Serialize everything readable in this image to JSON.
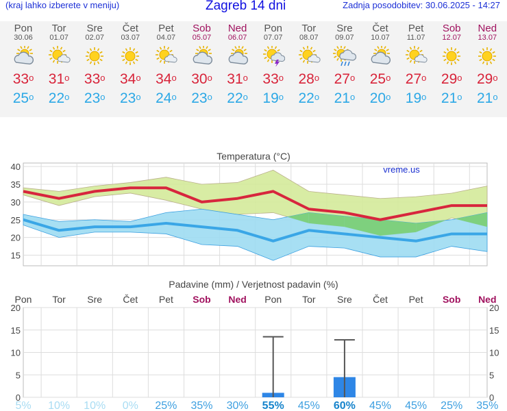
{
  "header": {
    "left_note": "(kraj lahko izberete v meniju)",
    "title": "Zagreb 14 dni",
    "updated": "Zadnja posodobitev: 30.06.2025 - 14:27"
  },
  "days": [
    {
      "name": "Pon",
      "date": "30.06",
      "weekend": false,
      "icon": "partly-cloudy-icon",
      "tmax": "33",
      "tmin": "25"
    },
    {
      "name": "Tor",
      "date": "01.07",
      "weekend": false,
      "icon": "sun-small-cloud-icon",
      "tmax": "31",
      "tmin": "22"
    },
    {
      "name": "Sre",
      "date": "02.07",
      "weekend": false,
      "icon": "sun-icon",
      "tmax": "33",
      "tmin": "23"
    },
    {
      "name": "Čet",
      "date": "03.07",
      "weekend": false,
      "icon": "sun-icon",
      "tmax": "34",
      "tmin": "23"
    },
    {
      "name": "Pet",
      "date": "04.07",
      "weekend": false,
      "icon": "sun-small-cloud-icon",
      "tmax": "34",
      "tmin": "24"
    },
    {
      "name": "Sob",
      "date": "05.07",
      "weekend": true,
      "icon": "partly-cloudy-icon",
      "tmax": "30",
      "tmin": "23"
    },
    {
      "name": "Ned",
      "date": "06.07",
      "weekend": true,
      "icon": "partly-cloudy-icon",
      "tmax": "31",
      "tmin": "22"
    },
    {
      "name": "Pon",
      "date": "07.07",
      "weekend": false,
      "icon": "thunderstorm-icon",
      "tmax": "33",
      "tmin": "19"
    },
    {
      "name": "Tor",
      "date": "08.07",
      "weekend": false,
      "icon": "sun-small-cloud-icon",
      "tmax": "28",
      "tmin": "22"
    },
    {
      "name": "Sre",
      "date": "09.07",
      "weekend": false,
      "icon": "rain-shower-icon",
      "tmax": "27",
      "tmin": "21"
    },
    {
      "name": "Čet",
      "date": "10.07",
      "weekend": false,
      "icon": "partly-cloudy-icon",
      "tmax": "25",
      "tmin": "20"
    },
    {
      "name": "Pet",
      "date": "11.07",
      "weekend": false,
      "icon": "sun-small-cloud-icon",
      "tmax": "27",
      "tmin": "19"
    },
    {
      "name": "Sob",
      "date": "12.07",
      "weekend": true,
      "icon": "sun-icon",
      "tmax": "29",
      "tmin": "21"
    },
    {
      "name": "Ned",
      "date": "13.07",
      "weekend": true,
      "icon": "sun-icon",
      "tmax": "29",
      "tmin": "21"
    }
  ],
  "colors": {
    "max_line": "#d7263d",
    "min_line": "#3aa6e6",
    "max_band": "#d4ea9a",
    "min_band": "#9ddcf2",
    "overlap": "#7ed07e",
    "precip_bar": "#2e86e6",
    "weekend": "#a0115e",
    "prob_high": "#1784cc",
    "prob_low": "#a8dcf3"
  },
  "chart_data": [
    {
      "type": "line",
      "title": "Temperatura (°C)",
      "watermark": "vreme.us",
      "ylim": [
        12,
        41
      ],
      "yticks": [
        15,
        20,
        25,
        30,
        35,
        40
      ],
      "categories": [
        "Pon",
        "Tor",
        "Sre",
        "Čet",
        "Pet",
        "Sob",
        "Ned",
        "Pon",
        "Tor",
        "Sre",
        "Čet",
        "Pet",
        "Sob",
        "Ned"
      ],
      "series": [
        {
          "values": [
            33,
            31,
            33,
            34,
            34,
            30,
            31,
            33,
            28,
            27,
            25,
            27,
            29,
            29
          ]
        },
        {
          "values": [
            25,
            22,
            23,
            23,
            24,
            23,
            22,
            19,
            22,
            21,
            20,
            19,
            21,
            21
          ]
        }
      ],
      "max_range_upper": [
        34,
        33,
        34.5,
        35.5,
        37,
        35,
        35.5,
        39,
        33,
        32,
        31,
        31.5,
        32.5,
        34.5
      ],
      "max_range_lower": [
        32,
        29,
        31.5,
        32.5,
        30.5,
        28,
        26.5,
        27,
        24,
        23,
        20.5,
        21.5,
        25.5,
        23
      ],
      "min_range_upper": [
        26.5,
        24.5,
        25,
        24.5,
        27,
        28,
        26.5,
        25,
        27,
        26,
        25,
        24,
        25,
        27
      ],
      "min_range_lower": [
        23.5,
        20,
        21.5,
        21.5,
        21,
        18,
        17.5,
        13.5,
        17.5,
        17,
        14.5,
        14.5,
        17.5,
        16
      ]
    },
    {
      "type": "bar",
      "title": "Padavine (mm) / Verjetnost padavin (%)",
      "ylim": [
        0,
        20
      ],
      "yticks": [
        0,
        5,
        10,
        15,
        20
      ],
      "categories": [
        "Pon",
        "Tor",
        "Sre",
        "Čet",
        "Pet",
        "Sob",
        "Ned",
        "Pon",
        "Tor",
        "Sre",
        "Čet",
        "Pet",
        "Sob",
        "Ned"
      ],
      "values": [
        0,
        0,
        0,
        0,
        0,
        0,
        0,
        1,
        0,
        4.5,
        0,
        0,
        0,
        0
      ],
      "error_max": [
        0,
        0,
        0,
        0,
        0,
        0,
        0,
        13.5,
        0,
        12.8,
        0,
        0,
        0,
        0
      ],
      "probability": [
        "5%",
        "10%",
        "10%",
        "0%",
        "25%",
        "35%",
        "30%",
        "55%",
        "45%",
        "60%",
        "45%",
        "45%",
        "25%",
        "35%"
      ],
      "probability_values": [
        5,
        10,
        10,
        0,
        25,
        35,
        30,
        55,
        45,
        60,
        45,
        45,
        25,
        35
      ]
    }
  ]
}
